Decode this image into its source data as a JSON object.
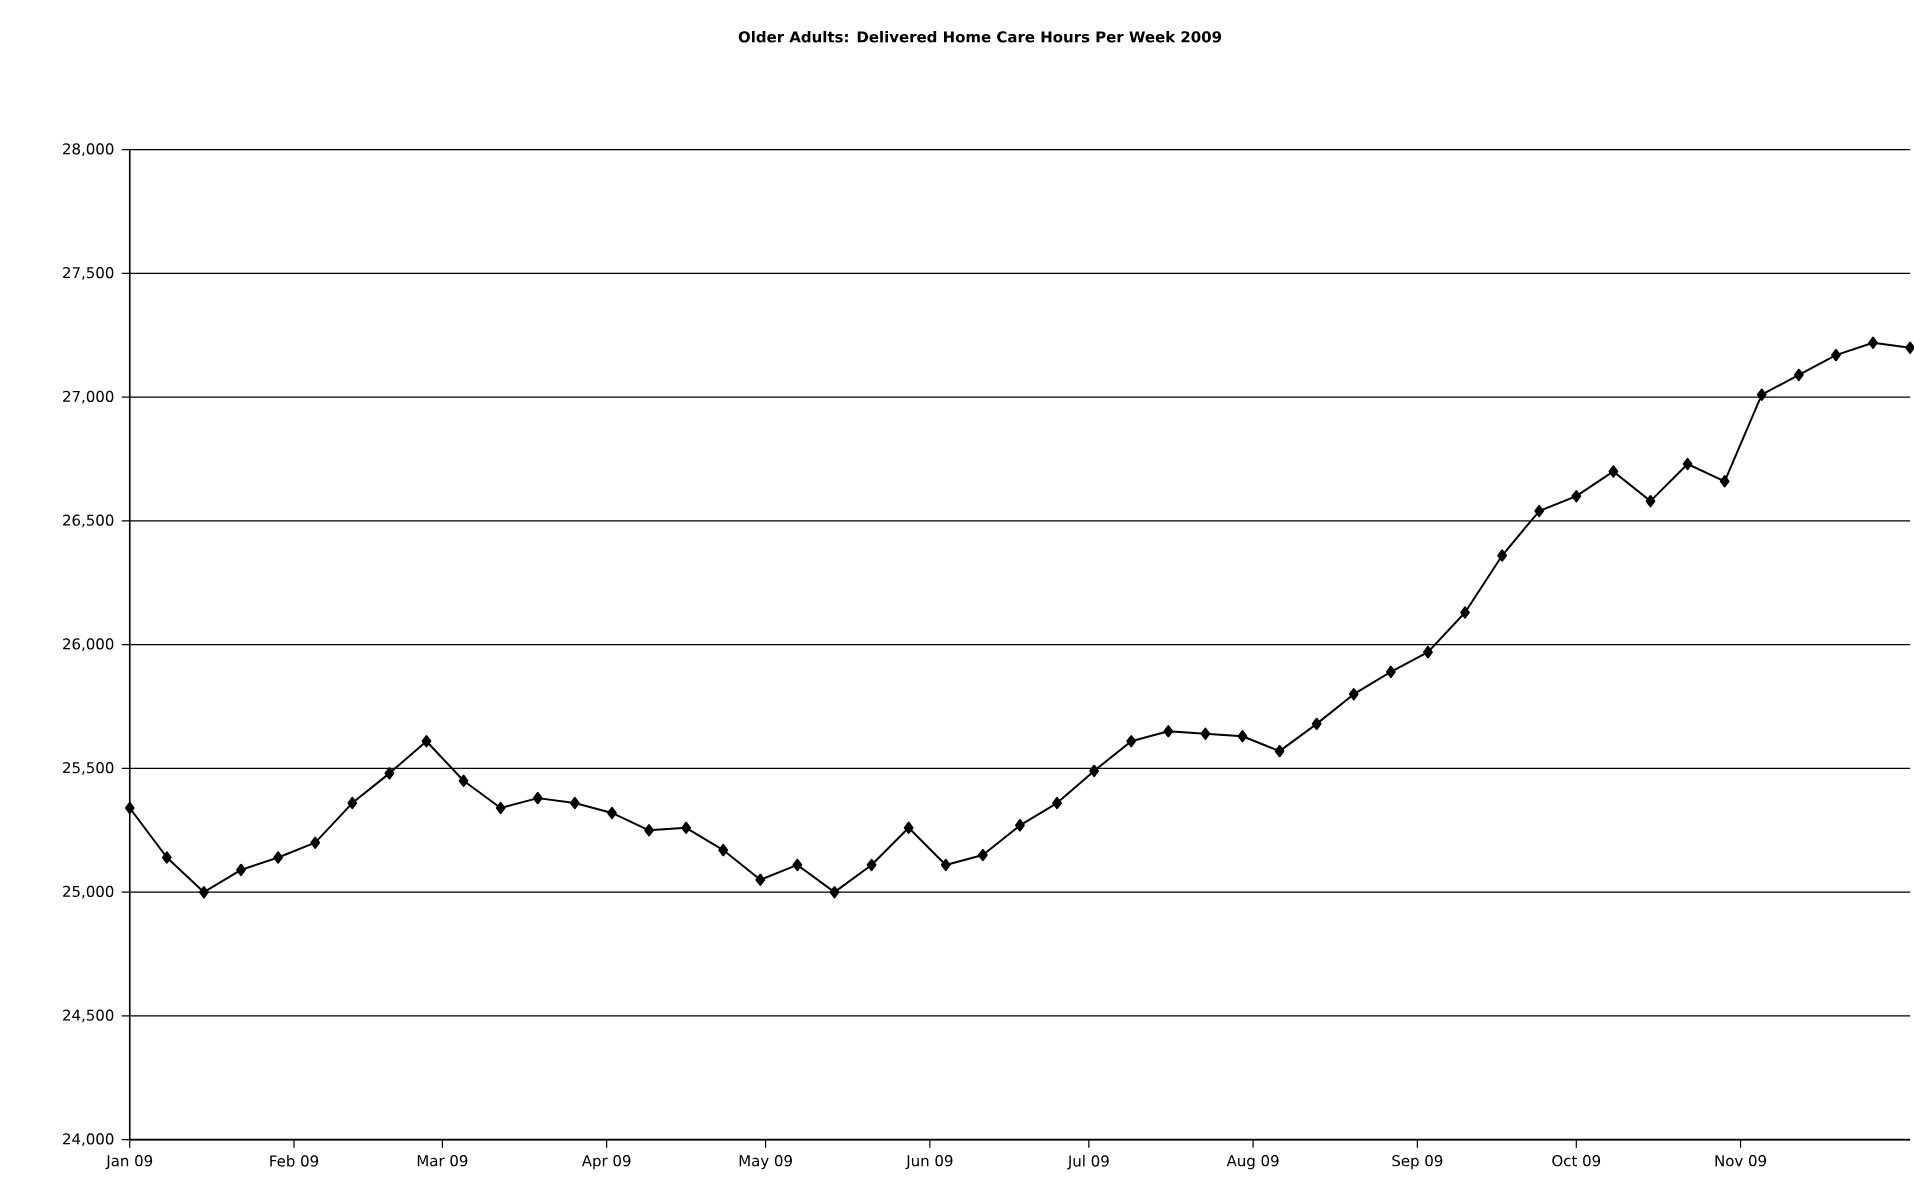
{
  "chart_data": {
    "type": "line",
    "title": "Older Adults: Delivered Home Care Hours Per Week 2009",
    "x": [
      "2009-01-01",
      "2009-01-08",
      "2009-01-15",
      "2009-01-22",
      "2009-01-29",
      "2009-02-05",
      "2009-02-12",
      "2009-02-19",
      "2009-02-26",
      "2009-03-05",
      "2009-03-12",
      "2009-03-19",
      "2009-03-26",
      "2009-04-02",
      "2009-04-09",
      "2009-04-16",
      "2009-04-23",
      "2009-04-30",
      "2009-05-07",
      "2009-05-14",
      "2009-05-21",
      "2009-05-28",
      "2009-06-04",
      "2009-06-11",
      "2009-06-18",
      "2009-06-25",
      "2009-07-02",
      "2009-07-09",
      "2009-07-16",
      "2009-07-23",
      "2009-07-30",
      "2009-08-06",
      "2009-08-13",
      "2009-08-20",
      "2009-08-27",
      "2009-09-03",
      "2009-09-10",
      "2009-09-17",
      "2009-09-24",
      "2009-10-01",
      "2009-10-08",
      "2009-10-15",
      "2009-10-22",
      "2009-10-29",
      "2009-11-05",
      "2009-11-12",
      "2009-11-19",
      "2009-11-26",
      "2009-12-03"
    ],
    "series": [
      {
        "color": "#000000",
        "values": [
          25340,
          25140,
          25000,
          25090,
          25140,
          25200,
          25360,
          25480,
          25610,
          25450,
          25340,
          25380,
          25360,
          25320,
          25250,
          25260,
          25170,
          25050,
          25110,
          25000,
          25110,
          25260,
          25110,
          25150,
          25270,
          25360,
          25490,
          25610,
          25650,
          25640,
          25630,
          25570,
          25680,
          25800,
          25890,
          25970,
          26130,
          26360,
          26540,
          26600,
          26700,
          26580,
          26730,
          26660,
          27010,
          27090,
          27170,
          27220,
          27200
        ]
      }
    ],
    "xlim": [
      "2009-01-01",
      "2009-12-03"
    ],
    "xticks": [
      {
        "value": "2009-01-01",
        "label": "Jan 09"
      },
      {
        "value": "2009-02-01",
        "label": "Feb 09"
      },
      {
        "value": "2009-03-01",
        "label": "Mar 09"
      },
      {
        "value": "2009-04-01",
        "label": "Apr 09"
      },
      {
        "value": "2009-05-01",
        "label": "May 09"
      },
      {
        "value": "2009-06-01",
        "label": "Jun 09"
      },
      {
        "value": "2009-07-01",
        "label": "Jul 09"
      },
      {
        "value": "2009-08-01",
        "label": "Aug 09"
      },
      {
        "value": "2009-09-01",
        "label": "Sep 09"
      },
      {
        "value": "2009-10-01",
        "label": "Oct 09"
      },
      {
        "value": "2009-11-01",
        "label": "Nov 09"
      }
    ],
    "ylim": [
      24000,
      28000
    ],
    "yticks": [
      {
        "value": 24000,
        "label": "24,000"
      },
      {
        "value": 24500,
        "label": "24,500"
      },
      {
        "value": 25000,
        "label": "25,000"
      },
      {
        "value": 25500,
        "label": "25,500"
      },
      {
        "value": 26000,
        "label": "26,000"
      },
      {
        "value": 26500,
        "label": "26,500"
      },
      {
        "value": 27000,
        "label": "27,000"
      },
      {
        "value": 27500,
        "label": "27,500"
      },
      {
        "value": 28000,
        "label": "28,000"
      }
    ],
    "grid": "y",
    "marker": "diamond",
    "line_style": "solid"
  }
}
